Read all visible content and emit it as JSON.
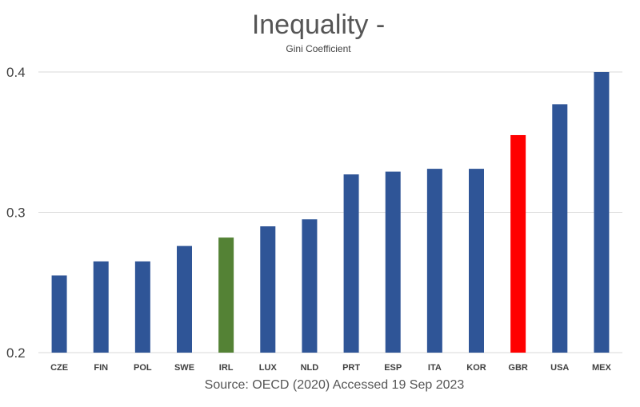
{
  "chart_data": {
    "type": "bar",
    "title": "Inequality -",
    "subtitle": "Gini Coefficient",
    "xlabel": "",
    "ylabel": "",
    "source": "Source: OECD (2020) Accessed 19 Sep 2023",
    "categories": [
      "CZE",
      "FIN",
      "POL",
      "SWE",
      "IRL",
      "LUX",
      "NLD",
      "PRT",
      "ESP",
      "ITA",
      "KOR",
      "GBR",
      "USA",
      "MEX"
    ],
    "values": [
      0.255,
      0.265,
      0.265,
      0.276,
      0.282,
      0.29,
      0.295,
      0.327,
      0.329,
      0.331,
      0.331,
      0.355,
      0.377,
      0.4
    ],
    "ylim": [
      0.2,
      0.4
    ],
    "yticks": [
      "0.2",
      "0.3",
      "0.4"
    ],
    "grid": true,
    "colors": {
      "default": "#2F5597",
      "IRL": "#548235",
      "GBR": "#FF0000"
    }
  }
}
